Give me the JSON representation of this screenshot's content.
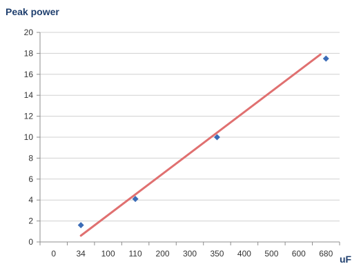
{
  "chart_data": {
    "type": "scatter",
    "ylabel": "Peak power",
    "xlabel": "uF",
    "x_categories": [
      "0",
      "34",
      "100",
      "110",
      "200",
      "300",
      "350",
      "400",
      "500",
      "600",
      "680"
    ],
    "y_ticks": [
      0,
      2,
      4,
      6,
      8,
      10,
      12,
      14,
      16,
      18,
      20
    ],
    "ylim": [
      0,
      20
    ],
    "grid": "horizontal",
    "legend": "none",
    "series": [
      {
        "points": [
          {
            "x": "34",
            "y": 1.6
          },
          {
            "x": "110",
            "y": 4.1
          },
          {
            "x": "350",
            "y": 10.0
          },
          {
            "x": "680",
            "y": 17.5
          }
        ],
        "marker_color": "#3b6cb7",
        "marker": "diamond"
      }
    ],
    "trendline": {
      "type": "linear",
      "color": "#e07070",
      "from": {
        "x": "34",
        "y": 0.6
      },
      "to": {
        "x": "680",
        "y": 17.9
      }
    }
  }
}
